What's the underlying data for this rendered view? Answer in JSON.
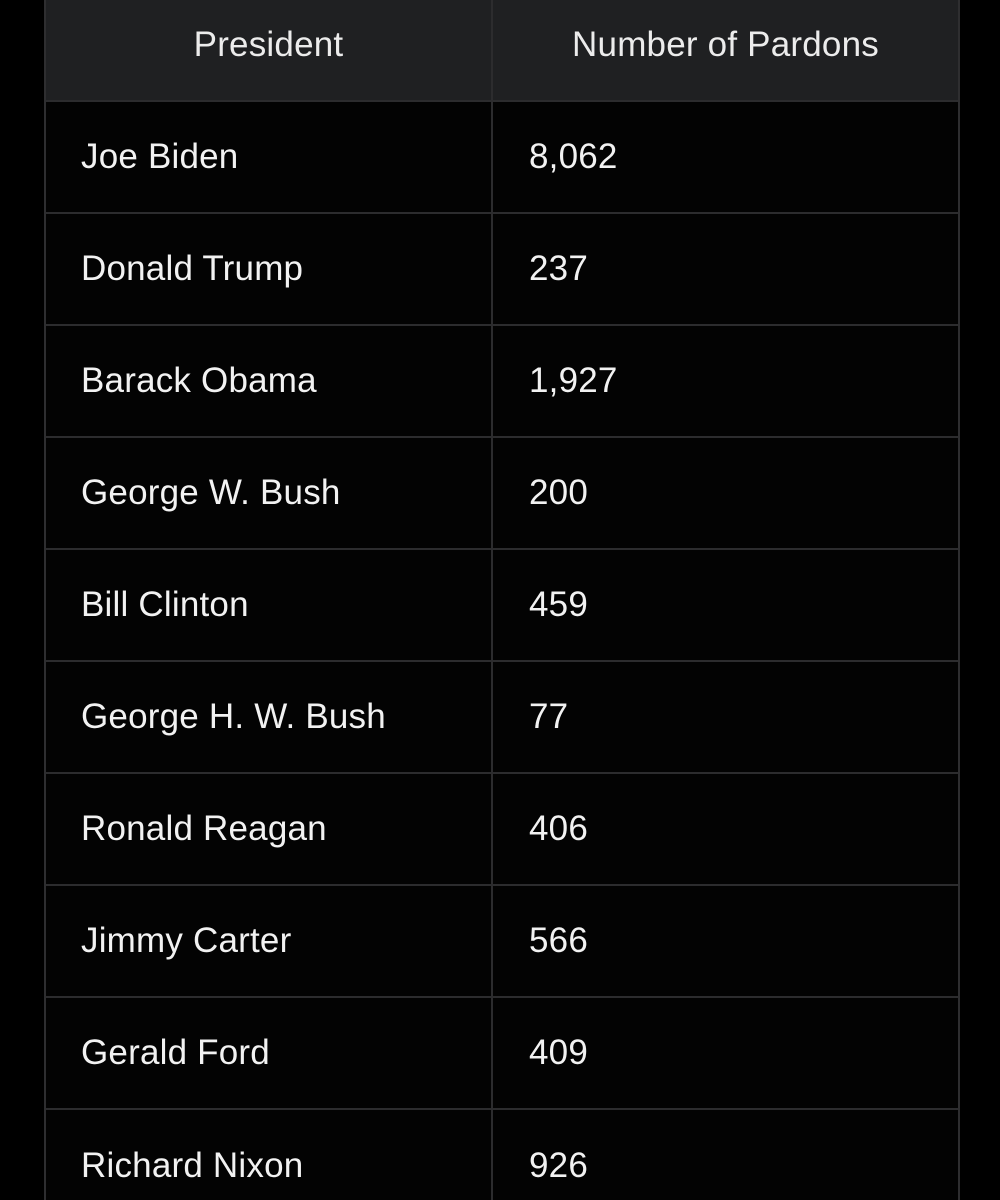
{
  "table": {
    "headers": {
      "president": "President",
      "pardons": "Number of Pardons"
    },
    "rows": [
      {
        "president": "Joe Biden",
        "pardons": "8,062"
      },
      {
        "president": "Donald Trump",
        "pardons": "237"
      },
      {
        "president": "Barack Obama",
        "pardons": "1,927"
      },
      {
        "president": "George W. Bush",
        "pardons": "200"
      },
      {
        "president": "Bill Clinton",
        "pardons": "459"
      },
      {
        "president": "George H. W. Bush",
        "pardons": "77"
      },
      {
        "president": "Ronald Reagan",
        "pardons": "406"
      },
      {
        "president": "Jimmy Carter",
        "pardons": "566"
      },
      {
        "president": "Gerald Ford",
        "pardons": "409"
      },
      {
        "president": "Richard Nixon",
        "pardons": "926"
      }
    ]
  },
  "colors": {
    "background": "#000000",
    "header_background": "#1f2022",
    "grid_line": "#2c2c2e",
    "text": "#f2f2f2"
  }
}
